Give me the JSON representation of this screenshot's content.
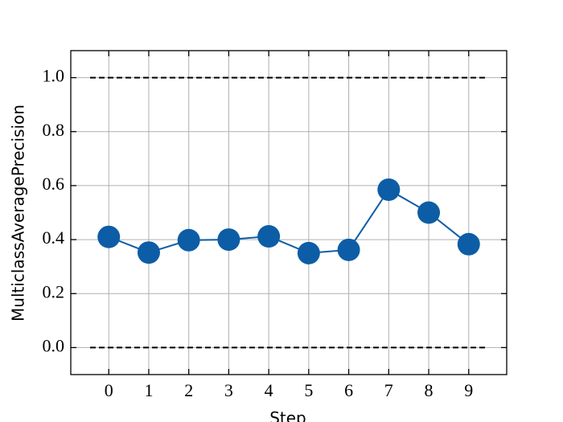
{
  "chart_data": {
    "type": "line",
    "x_label": "Step",
    "y_label": "MulticlassAveragePrecision",
    "x": [
      0,
      1,
      2,
      3,
      4,
      5,
      6,
      7,
      8,
      9
    ],
    "series": [
      {
        "color": "#0C5DA5",
        "values": [
          0.41,
          0.352,
          0.398,
          0.4,
          0.412,
          0.35,
          0.362,
          0.585,
          0.5,
          0.383
        ]
      }
    ],
    "xlim": [
      -0.95,
      9.95
    ],
    "ylim": [
      -0.1,
      1.1
    ],
    "xticks": [
      0,
      1,
      2,
      3,
      4,
      5,
      6,
      7,
      8,
      9
    ],
    "yticks": [
      {
        "value": 0,
        "label": "0.0"
      },
      0.2,
      0.4,
      0.6,
      0.8,
      {
        "value": 1,
        "label": "1.0"
      }
    ],
    "hlines": [
      0,
      1
    ],
    "hline_color": "#000000",
    "grid": true
  }
}
